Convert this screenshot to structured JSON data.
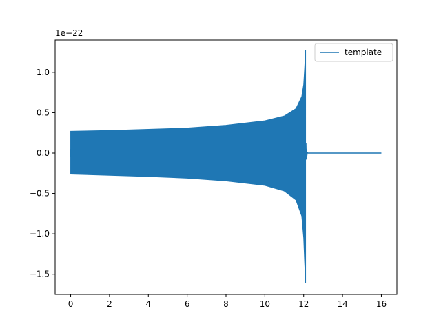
{
  "chart_data": {
    "type": "line",
    "title": "",
    "xlabel": "",
    "ylabel": "",
    "y_offset_text": "1e−22",
    "xlim": [
      -0.8,
      16.8
    ],
    "ylim": [
      -1.75,
      1.4
    ],
    "x_ticks": [
      0,
      2,
      4,
      6,
      8,
      10,
      12,
      14,
      16
    ],
    "x_tick_labels": [
      "0",
      "2",
      "4",
      "6",
      "8",
      "10",
      "12",
      "14",
      "16"
    ],
    "y_ticks": [
      -1.5,
      -1.0,
      -0.5,
      0.0,
      0.5,
      1.0
    ],
    "y_tick_labels": [
      "−1.5",
      "−1.0",
      "−0.5",
      "0.0",
      "0.5",
      "1.0"
    ],
    "grid": false,
    "legend_position": "upper-right",
    "series": [
      {
        "name": "template",
        "color": "#1f77b4",
        "chirp_envelope_upper": [
          [
            0,
            0.27
          ],
          [
            2,
            0.28
          ],
          [
            4,
            0.295
          ],
          [
            6,
            0.31
          ],
          [
            8,
            0.345
          ],
          [
            10,
            0.4
          ],
          [
            11,
            0.46
          ],
          [
            11.6,
            0.55
          ],
          [
            11.9,
            0.7
          ],
          [
            12.0,
            0.85
          ],
          [
            12.05,
            1.05
          ],
          [
            12.1,
            1.28
          ]
        ],
        "chirp_envelope_lower": [
          [
            0,
            -0.26
          ],
          [
            2,
            -0.275
          ],
          [
            4,
            -0.29
          ],
          [
            6,
            -0.31
          ],
          [
            8,
            -0.345
          ],
          [
            10,
            -0.4
          ],
          [
            11,
            -0.47
          ],
          [
            11.6,
            -0.58
          ],
          [
            11.9,
            -0.78
          ],
          [
            12.0,
            -1.05
          ],
          [
            12.05,
            -1.35
          ],
          [
            12.1,
            -1.61
          ]
        ],
        "ringdown_end": 12.2,
        "flat_segment": [
          [
            12.2,
            0.0
          ],
          [
            16.0,
            0.0
          ]
        ]
      }
    ]
  }
}
